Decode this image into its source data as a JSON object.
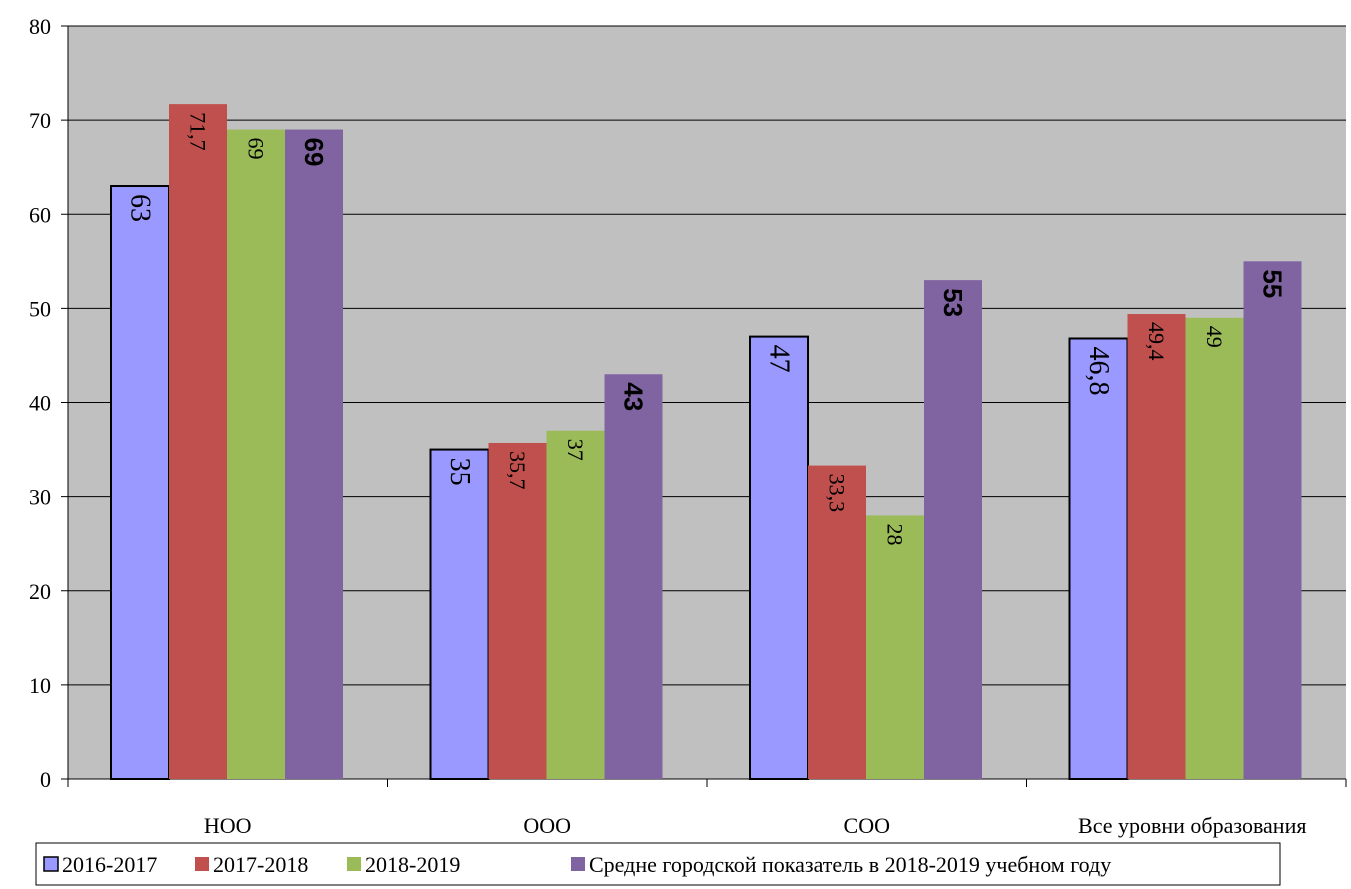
{
  "chart_data": {
    "type": "bar",
    "categories": [
      "НОО",
      "ООО",
      "СОО",
      "Все уровни образования"
    ],
    "series": [
      {
        "name": "2016-2017",
        "values": [
          63,
          35,
          47,
          46.8
        ],
        "labels": [
          "63",
          "35",
          "47",
          "46,8"
        ],
        "color": "#9999ff"
      },
      {
        "name": "2017-2018",
        "values": [
          71.7,
          35.7,
          33.3,
          49.4
        ],
        "labels": [
          "71,7",
          "35,7",
          "33,3",
          "49,4"
        ],
        "color": "#c0504d"
      },
      {
        "name": "2018-2019",
        "values": [
          69,
          37,
          28,
          49
        ],
        "labels": [
          "69",
          "37",
          "28",
          "49"
        ],
        "color": "#9bbb59"
      },
      {
        "name": "Средне городской показатель в 2018-2019 учебном году",
        "values": [
          69,
          43,
          53,
          55
        ],
        "labels": [
          "69",
          "43",
          "53",
          "55"
        ],
        "color": "#8064a2"
      }
    ],
    "ylim": [
      0,
      80
    ],
    "yticks": [
      0,
      10,
      20,
      30,
      40,
      50,
      60,
      70,
      80
    ],
    "grid": true,
    "legend_position": "bottom",
    "plot_background": "#c0c0c0"
  }
}
